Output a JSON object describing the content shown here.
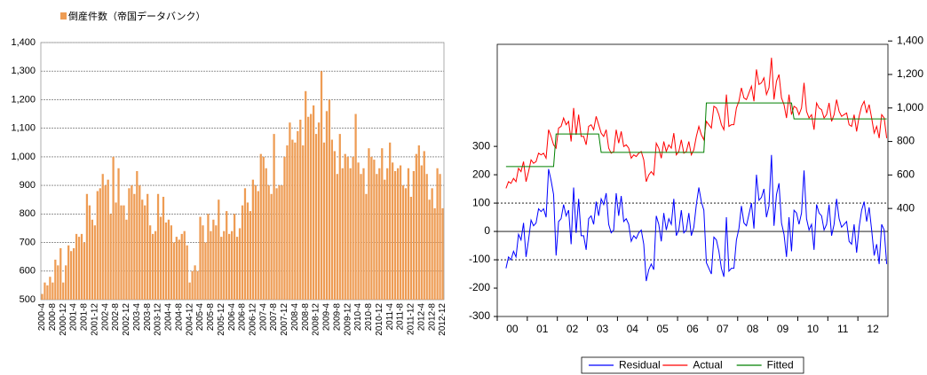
{
  "chart_data": [
    {
      "type": "bar",
      "series": [
        {
          "name": "倒産件数（帝国データバンク）",
          "color": "#ee9c54",
          "values": [
            520,
            560,
            550,
            580,
            560,
            640,
            620,
            680,
            560,
            620,
            690,
            670,
            680,
            730,
            720,
            730,
            700,
            870,
            830,
            780,
            760,
            880,
            890,
            940,
            900,
            920,
            800,
            1000,
            840,
            960,
            830,
            830,
            780,
            890,
            900,
            870,
            950,
            900,
            850,
            830,
            870,
            760,
            730,
            740,
            870,
            790,
            860,
            770,
            780,
            760,
            700,
            720,
            710,
            730,
            740,
            690,
            560,
            600,
            620,
            600,
            790,
            760,
            700,
            800,
            740,
            780,
            760,
            850,
            720,
            740,
            810,
            730,
            740,
            800,
            720,
            750,
            830,
            890,
            840,
            810,
            920,
            900,
            880,
            1010,
            1000,
            960,
            900,
            870,
            1080,
            890,
            900,
            900,
            1000,
            1040,
            1120,
            1060,
            1050,
            1090,
            1130,
            1040,
            1230,
            1140,
            1150,
            1180,
            1080,
            1120,
            1300,
            1050,
            1160,
            1200,
            1060,
            1020,
            940,
            1080,
            960,
            1010,
            1000,
            960,
            1000,
            1150,
            980,
            940,
            960,
            870,
            1030,
            1000,
            990,
            940,
            960,
            1030,
            920,
            960,
            1050,
            980,
            950,
            960,
            970,
            900,
            890,
            960,
            860,
            950,
            1010,
            1040,
            970,
            1020,
            940,
            850,
            890,
            820,
            960,
            940,
            820
          ]
        }
      ],
      "categories": [
        "2000-4",
        null,
        null,
        null,
        "2000-8",
        null,
        null,
        null,
        "2000-12",
        null,
        null,
        null,
        "2001-4",
        null,
        null,
        null,
        "2001-8",
        null,
        null,
        null,
        "2001-12",
        null,
        null,
        null,
        "2002-4",
        null,
        null,
        null,
        "2002-8",
        null,
        null,
        null,
        "2002-12",
        null,
        null,
        null,
        "2003-4",
        null,
        null,
        null,
        "2003-8",
        null,
        null,
        null,
        "2003-12",
        null,
        null,
        null,
        "2004-4",
        null,
        null,
        null,
        "2004-8",
        null,
        null,
        null,
        "2004-12",
        null,
        null,
        null,
        "2005-4",
        null,
        null,
        null,
        "2005-8",
        null,
        null,
        null,
        "2005-12",
        null,
        null,
        null,
        "2006-4",
        null,
        null,
        null,
        "2006-8",
        null,
        null,
        null,
        "2006-12",
        null,
        null,
        null,
        "2007-4",
        null,
        null,
        null,
        "2007-8",
        null,
        null,
        null,
        "2007-12",
        null,
        null,
        null,
        "2008-4",
        null,
        null,
        null,
        "2008-8",
        null,
        null,
        null,
        "2008-12",
        null,
        null,
        null,
        "2009-4",
        null,
        null,
        null,
        "2009-8",
        null,
        null,
        null,
        "2009-12",
        null,
        null,
        null,
        "2010-4",
        null,
        null,
        null,
        "2010-8",
        null,
        null,
        null,
        "2010-12",
        null,
        null,
        null,
        "2011-4",
        null,
        null,
        null,
        "2011-8",
        null,
        null,
        null,
        "2011-12",
        null,
        null,
        null,
        "2012-4",
        null,
        null,
        null,
        "2012-8",
        null,
        null,
        null,
        "2012-12"
      ],
      "ylim": [
        500,
        1400
      ],
      "yticks": [
        500,
        600,
        700,
        800,
        900,
        {
          "value": 1000,
          "label": "1,000"
        },
        {
          "value": 1100,
          "label": "1,100"
        },
        {
          "value": 1200,
          "label": "1,200"
        },
        {
          "value": 1300,
          "label": "1,300"
        },
        {
          "value": 1400,
          "label": "1,400"
        }
      ],
      "grid": true,
      "legend": "top-left"
    },
    {
      "type": "line",
      "x_labels": [
        "00",
        "01",
        "02",
        "03",
        "04",
        "05",
        "06",
        "07",
        "08",
        "09",
        "10",
        "11",
        "12"
      ],
      "series": [
        {
          "name": "Residual",
          "color": "#0000ff",
          "values": [
            -130,
            -90,
            -100,
            -70,
            -90,
            -10,
            -30,
            30,
            -90,
            -30,
            40,
            20,
            30,
            80,
            70,
            80,
            50,
            220,
            180,
            130,
            -85,
            35,
            45,
            95,
            55,
            75,
            -45,
            155,
            -5,
            115,
            -15,
            -15,
            -65,
            45,
            55,
            25,
            105,
            55,
            115,
            95,
            135,
            25,
            -5,
            5,
            135,
            55,
            125,
            35,
            45,
            25,
            -35,
            -15,
            -25,
            -5,
            5,
            -45,
            -175,
            -135,
            -115,
            -135,
            55,
            25,
            -35,
            65,
            5,
            45,
            25,
            115,
            -15,
            5,
            75,
            -5,
            5,
            65,
            -15,
            15,
            95,
            155,
            105,
            75,
            -110,
            -130,
            -150,
            -20,
            -30,
            -70,
            -130,
            -160,
            50,
            -140,
            -130,
            -130,
            -30,
            10,
            90,
            30,
            20,
            60,
            100,
            10,
            200,
            110,
            120,
            150,
            50,
            90,
            270,
            20,
            130,
            170,
            30,
            -10,
            -90,
            50,
            -70,
            75,
            65,
            25,
            65,
            215,
            45,
            5,
            25,
            -65,
            95,
            65,
            55,
            5,
            25,
            95,
            -15,
            25,
            115,
            45,
            15,
            25,
            35,
            -35,
            -45,
            25,
            -75,
            15,
            75,
            105,
            35,
            85,
            5,
            -85,
            -45,
            -115,
            25,
            5,
            -115
          ]
        },
        {
          "name": "Actual",
          "color": "#ff0000",
          "axis": "y2",
          "values": [
            520,
            560,
            550,
            580,
            560,
            640,
            620,
            680,
            560,
            620,
            690,
            670,
            680,
            730,
            720,
            730,
            700,
            870,
            830,
            780,
            760,
            880,
            890,
            940,
            900,
            920,
            800,
            1000,
            840,
            960,
            830,
            830,
            780,
            890,
            900,
            870,
            950,
            900,
            850,
            830,
            870,
            760,
            730,
            740,
            870,
            790,
            860,
            770,
            780,
            760,
            700,
            720,
            710,
            730,
            740,
            690,
            560,
            600,
            620,
            600,
            790,
            760,
            700,
            800,
            740,
            780,
            760,
            850,
            720,
            740,
            810,
            730,
            740,
            800,
            720,
            750,
            830,
            890,
            840,
            810,
            920,
            900,
            880,
            1010,
            1000,
            960,
            900,
            870,
            1080,
            890,
            900,
            900,
            1000,
            1040,
            1120,
            1060,
            1050,
            1090,
            1130,
            1040,
            1230,
            1140,
            1150,
            1180,
            1080,
            1120,
            1300,
            1050,
            1160,
            1200,
            1060,
            1020,
            940,
            1080,
            960,
            1010,
            1000,
            960,
            1000,
            1150,
            980,
            940,
            960,
            870,
            1030,
            1000,
            990,
            940,
            960,
            1030,
            920,
            960,
            1050,
            980,
            950,
            960,
            970,
            900,
            890,
            960,
            860,
            950,
            1010,
            1040,
            970,
            1020,
            940,
            850,
            890,
            820,
            960,
            940,
            820
          ]
        },
        {
          "name": "Fitted",
          "color": "#008000",
          "axis": "y2",
          "values": [
            650,
            650,
            650,
            650,
            650,
            650,
            650,
            650,
            650,
            650,
            650,
            650,
            650,
            650,
            650,
            650,
            650,
            650,
            650,
            650,
            845,
            845,
            845,
            845,
            845,
            845,
            845,
            845,
            845,
            845,
            845,
            845,
            845,
            845,
            845,
            845,
            845,
            845,
            735,
            735,
            735,
            735,
            735,
            735,
            735,
            735,
            735,
            735,
            735,
            735,
            735,
            735,
            735,
            735,
            735,
            735,
            735,
            735,
            735,
            735,
            735,
            735,
            735,
            735,
            735,
            735,
            735,
            735,
            735,
            735,
            735,
            735,
            735,
            735,
            735,
            735,
            735,
            735,
            735,
            735,
            1030,
            1030,
            1030,
            1030,
            1030,
            1030,
            1030,
            1030,
            1030,
            1030,
            1030,
            1030,
            1030,
            1030,
            1030,
            1030,
            1030,
            1030,
            1030,
            1030,
            1030,
            1030,
            1030,
            1030,
            1030,
            1030,
            1030,
            1030,
            1030,
            1030,
            1030,
            1030,
            1030,
            1030,
            1030,
            935,
            935,
            935,
            935,
            935,
            935,
            935,
            935,
            935,
            935,
            935,
            935,
            935,
            935,
            935,
            935,
            935,
            935,
            935,
            935,
            935,
            935,
            935,
            935,
            935,
            935,
            935,
            935,
            935,
            935,
            935,
            935,
            935,
            935,
            935,
            935,
            935,
            935
          ]
        }
      ],
      "ylim": [
        -300,
        660
      ],
      "yticks": [
        -300,
        -200,
        -100,
        0,
        100,
        200,
        300
      ],
      "y2lim": [
        -245,
        1380
      ],
      "y2ticks": [
        400,
        600,
        800,
        {
          "value": 1000,
          "label": "1,000"
        },
        {
          "value": 1200,
          "label": "1,200"
        },
        {
          "value": 1400,
          "label": "1,400"
        }
      ],
      "reference_lines": [
        -100,
        0,
        100
      ],
      "legend": "bottom"
    }
  ]
}
